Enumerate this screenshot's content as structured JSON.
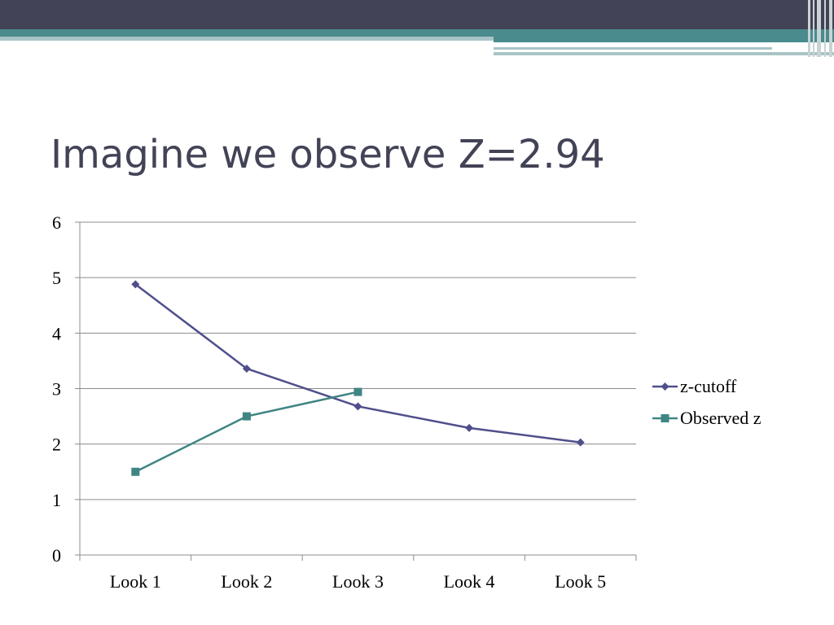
{
  "slide": {
    "title": "Imagine we observe Z=2.94"
  },
  "colors": {
    "header_dark": "#424356",
    "header_teal": "#4a8b8d",
    "header_light": "#a9c4c6"
  },
  "chart_data": {
    "type": "line",
    "categories": [
      "Look 1",
      "Look 2",
      "Look 3",
      "Look 4",
      "Look 5"
    ],
    "series": [
      {
        "name": "z-cutoff",
        "values": [
          4.88,
          3.36,
          2.68,
          2.29,
          2.03
        ],
        "color": "#4f4f8c",
        "marker": "diamond"
      },
      {
        "name": "Observed z",
        "values": [
          1.5,
          2.5,
          2.94,
          null,
          null
        ],
        "color": "#3f8584",
        "marker": "square"
      }
    ],
    "ylim": [
      0,
      6
    ],
    "yticks": [
      "0",
      "1",
      "2",
      "3",
      "4",
      "5",
      "6"
    ],
    "grid": true,
    "legend": "right",
    "xlabel": "",
    "ylabel": ""
  }
}
